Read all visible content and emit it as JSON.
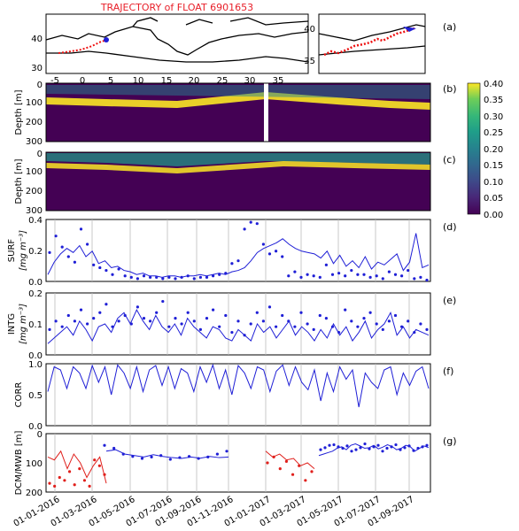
{
  "map_panel": {
    "title": "TRAJECTORY of FLOAT 6901653",
    "title_color": "#e8202a",
    "label": "(a)",
    "x_ticks": [
      "-5",
      "0",
      "5",
      "10",
      "15",
      "20",
      "25",
      "30",
      "35"
    ],
    "y_ticks": [
      "30",
      "40"
    ],
    "inset_y_ticks": [
      "35",
      "40"
    ]
  },
  "colorbar": {
    "ticks": [
      "0.40",
      "0.35",
      "0.30",
      "0.25",
      "0.20",
      "0.15",
      "0.10",
      "0.05",
      "0.00"
    ],
    "colormap": "viridis"
  },
  "colors": {
    "series": "#1f1fd6",
    "dcm_red": "#e0201c",
    "track": "#ee1111"
  },
  "chart_data": [
    {
      "type": "heatmap",
      "label": "(b)",
      "ylabel": "Depth [m]",
      "yticks": [
        "0",
        "100",
        "200",
        "300"
      ],
      "ylim": [
        300,
        0
      ],
      "note_gap": true
    },
    {
      "type": "heatmap",
      "label": "(c)",
      "ylabel": "Depth [m]",
      "yticks": [
        "0",
        "100",
        "200",
        "300"
      ],
      "ylim": [
        300,
        0
      ]
    },
    {
      "type": "line",
      "label": "(d)",
      "ylabel": "SURF",
      "ylabel2": "[mg m⁻³]",
      "yticks": [
        "0.0",
        "0.2",
        "0.4"
      ],
      "ylim": [
        0,
        0.45
      ],
      "line": [
        0.05,
        0.14,
        0.2,
        0.24,
        0.21,
        0.26,
        0.18,
        0.22,
        0.13,
        0.15,
        0.1,
        0.11,
        0.08,
        0.07,
        0.05,
        0.06,
        0.04,
        0.04,
        0.03,
        0.04,
        0.04,
        0.03,
        0.04,
        0.04,
        0.05,
        0.04,
        0.05,
        0.06,
        0.05,
        0.07,
        0.08,
        0.1,
        0.15,
        0.21,
        0.24,
        0.26,
        0.28,
        0.31,
        0.27,
        0.24,
        0.22,
        0.21,
        0.2,
        0.17,
        0.22,
        0.13,
        0.19,
        0.11,
        0.15,
        0.1,
        0.18,
        0.09,
        0.14,
        0.12,
        0.16,
        0.2,
        0.08,
        0.14,
        0.35,
        0.1,
        0.12
      ],
      "points": [
        0.21,
        0.33,
        0.25,
        0.18,
        0.14,
        0.38,
        0.27,
        0.12,
        0.1,
        0.08,
        0.05,
        0.09,
        0.04,
        0.03,
        0.02,
        0.04,
        0.03,
        0.03,
        0.02,
        0.03,
        0.02,
        0.03,
        0.04,
        0.02,
        0.03,
        0.03,
        0.04,
        0.05,
        0.06,
        0.13,
        0.15,
        0.38,
        0.43,
        0.42,
        0.27,
        0.2,
        0.22,
        0.18,
        0.04,
        0.07,
        0.03,
        0.05,
        0.04,
        0.03,
        0.12,
        0.05,
        0.06,
        0.04,
        0.08,
        0.05,
        0.05,
        0.03,
        0.04,
        0.02,
        0.07,
        0.05,
        0.04,
        0.08,
        0.02,
        0.03,
        0.01
      ]
    },
    {
      "type": "line",
      "label": "(e)",
      "ylabel": "INTG",
      "ylabel2": "[mg m⁻³]",
      "yticks": [
        "0.0",
        "0.1",
        "0.2"
      ],
      "ylim": [
        0,
        0.22
      ],
      "line": [
        0.04,
        0.06,
        0.08,
        0.1,
        0.07,
        0.12,
        0.09,
        0.05,
        0.1,
        0.11,
        0.08,
        0.13,
        0.15,
        0.11,
        0.16,
        0.12,
        0.09,
        0.14,
        0.1,
        0.08,
        0.11,
        0.07,
        0.13,
        0.1,
        0.08,
        0.06,
        0.1,
        0.09,
        0.06,
        0.05,
        0.09,
        0.07,
        0.05,
        0.11,
        0.08,
        0.1,
        0.06,
        0.09,
        0.12,
        0.07,
        0.1,
        0.08,
        0.05,
        0.09,
        0.06,
        0.11,
        0.07,
        0.1,
        0.05,
        0.08,
        0.12,
        0.06,
        0.09,
        0.11,
        0.15,
        0.07,
        0.1,
        0.06,
        0.09,
        0.08,
        0.07
      ],
      "points": [
        0.09,
        0.12,
        0.1,
        0.14,
        0.12,
        0.16,
        0.11,
        0.13,
        0.15,
        0.18,
        0.1,
        0.12,
        0.14,
        0.11,
        0.17,
        0.13,
        0.12,
        0.15,
        0.19,
        0.1,
        0.13,
        0.11,
        0.15,
        0.12,
        0.09,
        0.13,
        0.16,
        0.1,
        0.14,
        0.08,
        0.12,
        0.07,
        0.11,
        0.15,
        0.12,
        0.17,
        0.1,
        0.14,
        0.12,
        0.1,
        0.15,
        0.11,
        0.09,
        0.14,
        0.13,
        0.1,
        0.08,
        0.16,
        0.12,
        0.1,
        0.13,
        0.15,
        0.11,
        0.09,
        0.12,
        0.14,
        0.1,
        0.12,
        0.08,
        0.11,
        0.09
      ]
    },
    {
      "type": "line",
      "label": "(f)",
      "ylabel": "CORR",
      "yticks": [
        "0.0",
        "0.5",
        "1.0"
      ],
      "ylim": [
        0,
        1.0
      ],
      "line": [
        0.55,
        0.95,
        0.9,
        0.6,
        0.95,
        0.85,
        0.6,
        0.97,
        0.7,
        0.95,
        0.5,
        0.98,
        0.85,
        0.6,
        0.95,
        0.55,
        0.9,
        0.97,
        0.65,
        0.95,
        0.6,
        0.92,
        0.85,
        0.55,
        0.95,
        0.7,
        0.98,
        0.6,
        0.9,
        0.5,
        0.97,
        0.85,
        0.6,
        0.95,
        0.9,
        0.55,
        0.88,
        0.98,
        0.65,
        0.95,
        0.7,
        0.58,
        0.9,
        0.4,
        0.85,
        0.55,
        0.95,
        0.75,
        0.9,
        0.3,
        0.85,
        0.7,
        0.6,
        0.9,
        0.95,
        0.5,
        0.85,
        0.65,
        0.88,
        0.95,
        0.6
      ]
    },
    {
      "type": "line",
      "label": "(g)",
      "ylabel": "DCM/MWB [m]",
      "yticks": [
        "0",
        "100",
        "200"
      ],
      "ylim": [
        200,
        0
      ],
      "categories": [
        "01-01-2016",
        "01-03-2016",
        "01-05-2016",
        "01-07-2016",
        "01-09-2016",
        "01-11-2016",
        "01-01-2017",
        "01-03-2017",
        "01-05-2017",
        "01-07-2017",
        "01-09-2017"
      ],
      "line_blue": [
        60,
        55,
        70,
        75,
        80,
        72,
        78,
        82,
        85,
        80,
        84,
        78,
        82,
        80,
        75,
        70,
        65,
        60,
        50,
        45,
        55,
        40,
        35,
        42,
        50,
        48,
        40,
        52,
        46,
        38,
        44,
        55,
        50,
        40,
        45,
        60,
        50,
        42,
        48
      ],
      "points_blue": [
        40,
        50,
        70,
        78,
        85,
        80,
        75,
        88,
        82,
        78,
        85,
        80,
        70,
        60,
        55,
        48,
        40,
        38,
        45,
        50,
        42,
        60,
        55,
        48,
        35,
        52,
        45,
        40,
        60,
        50,
        45,
        38,
        55,
        48,
        42,
        58,
        50,
        45,
        40
      ],
      "line_red": [
        80,
        90,
        60,
        120,
        70,
        100,
        150,
        110,
        80,
        170
      ],
      "points_red": [
        170,
        180,
        150,
        160,
        130,
        175,
        120,
        160,
        180,
        90,
        110,
        140
      ]
    }
  ]
}
